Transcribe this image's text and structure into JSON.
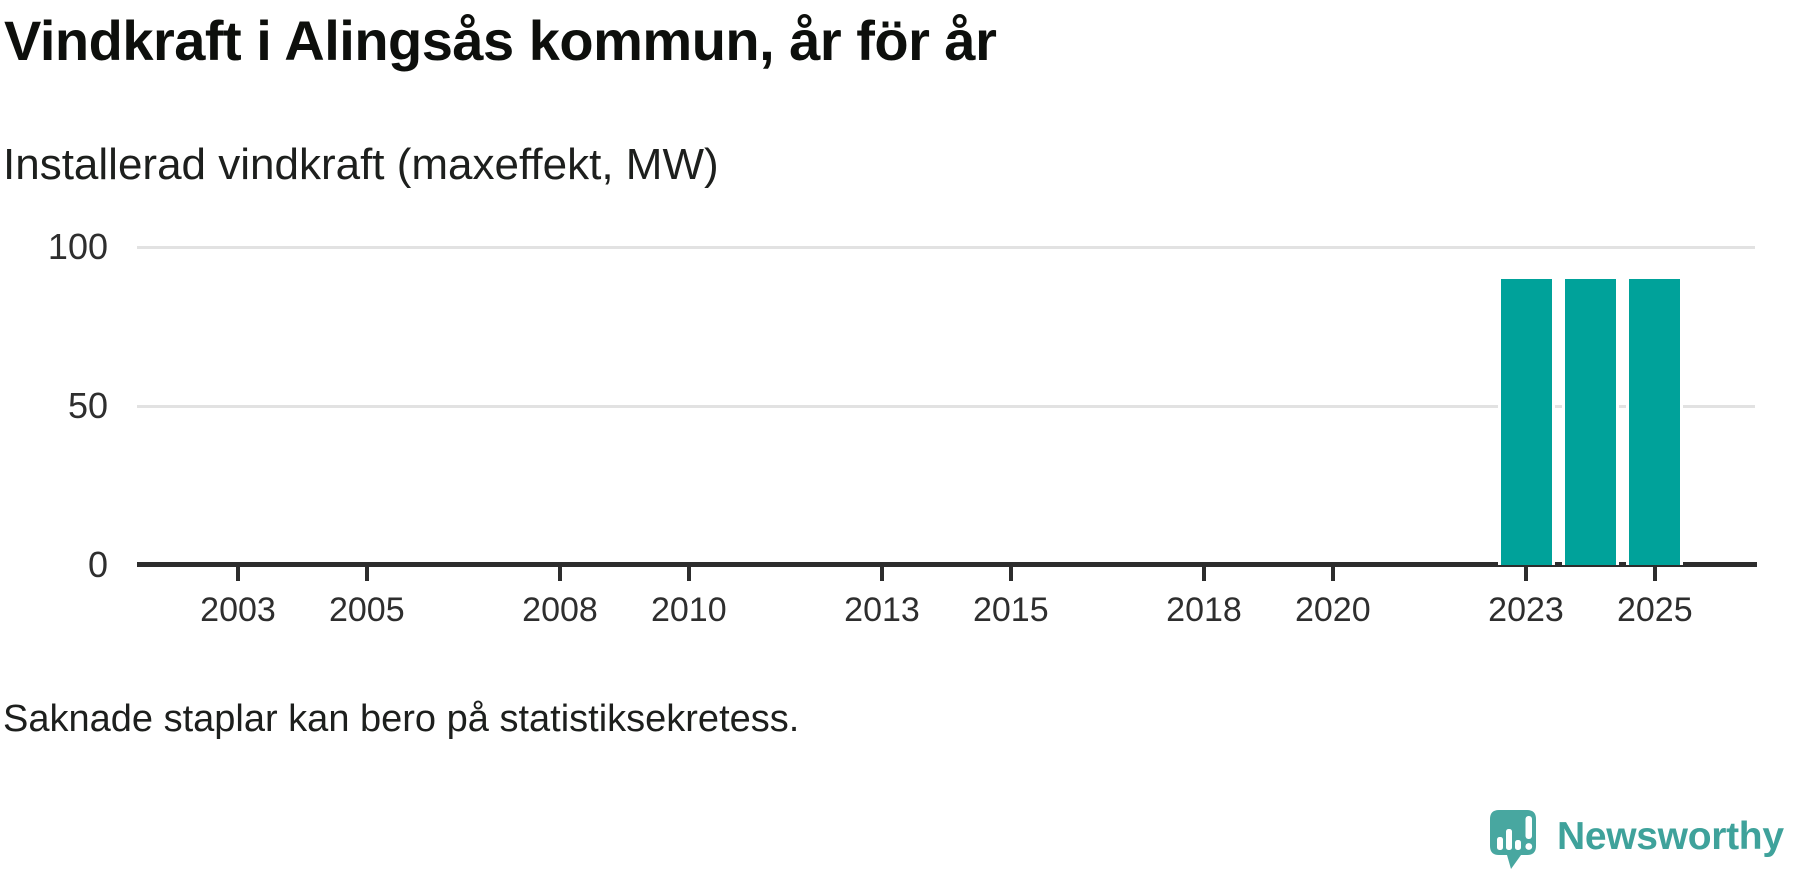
{
  "header": {
    "title": "Vindkraft i Alingsås kommun, år för år",
    "subtitle": "Installerad vindkraft (maxeffekt, MW)"
  },
  "footer": {
    "note": "Saknade staplar kan bero på statistiksekretess.",
    "brand": {
      "name": "Newsworthy",
      "icon": "newsworthy-speech-bubble-bar-chart-icon",
      "text_color": "#3fa29b",
      "bubble_color": "#48a7a0"
    }
  },
  "chart_data": {
    "type": "bar",
    "title": "Vindkraft i Alingsås kommun, år för år",
    "subtitle": "Installerad vindkraft (maxeffekt, MW)",
    "ylabel": "Installerad vindkraft (maxeffekt, MW)",
    "xlabel": "",
    "unit": "MW",
    "x": [
      2023,
      2024,
      2025
    ],
    "values": [
      90,
      90,
      90
    ],
    "xlim": [
      2001.5,
      2026.5
    ],
    "ylim": [
      0,
      100
    ],
    "x_ticks": [
      2003,
      2005,
      2008,
      2010,
      2013,
      2015,
      2018,
      2020,
      2023,
      2025
    ],
    "y_ticks": [
      0,
      50,
      100
    ],
    "grid": "horizontal",
    "legend": "none",
    "note": "Saknade staplar kan bero på statistiksekretess.",
    "colors": {
      "bar": "#00a29a",
      "axis": "#2d2d2d",
      "gridline": "#e2e2e2",
      "tick_label": "#2e2e2e"
    }
  }
}
